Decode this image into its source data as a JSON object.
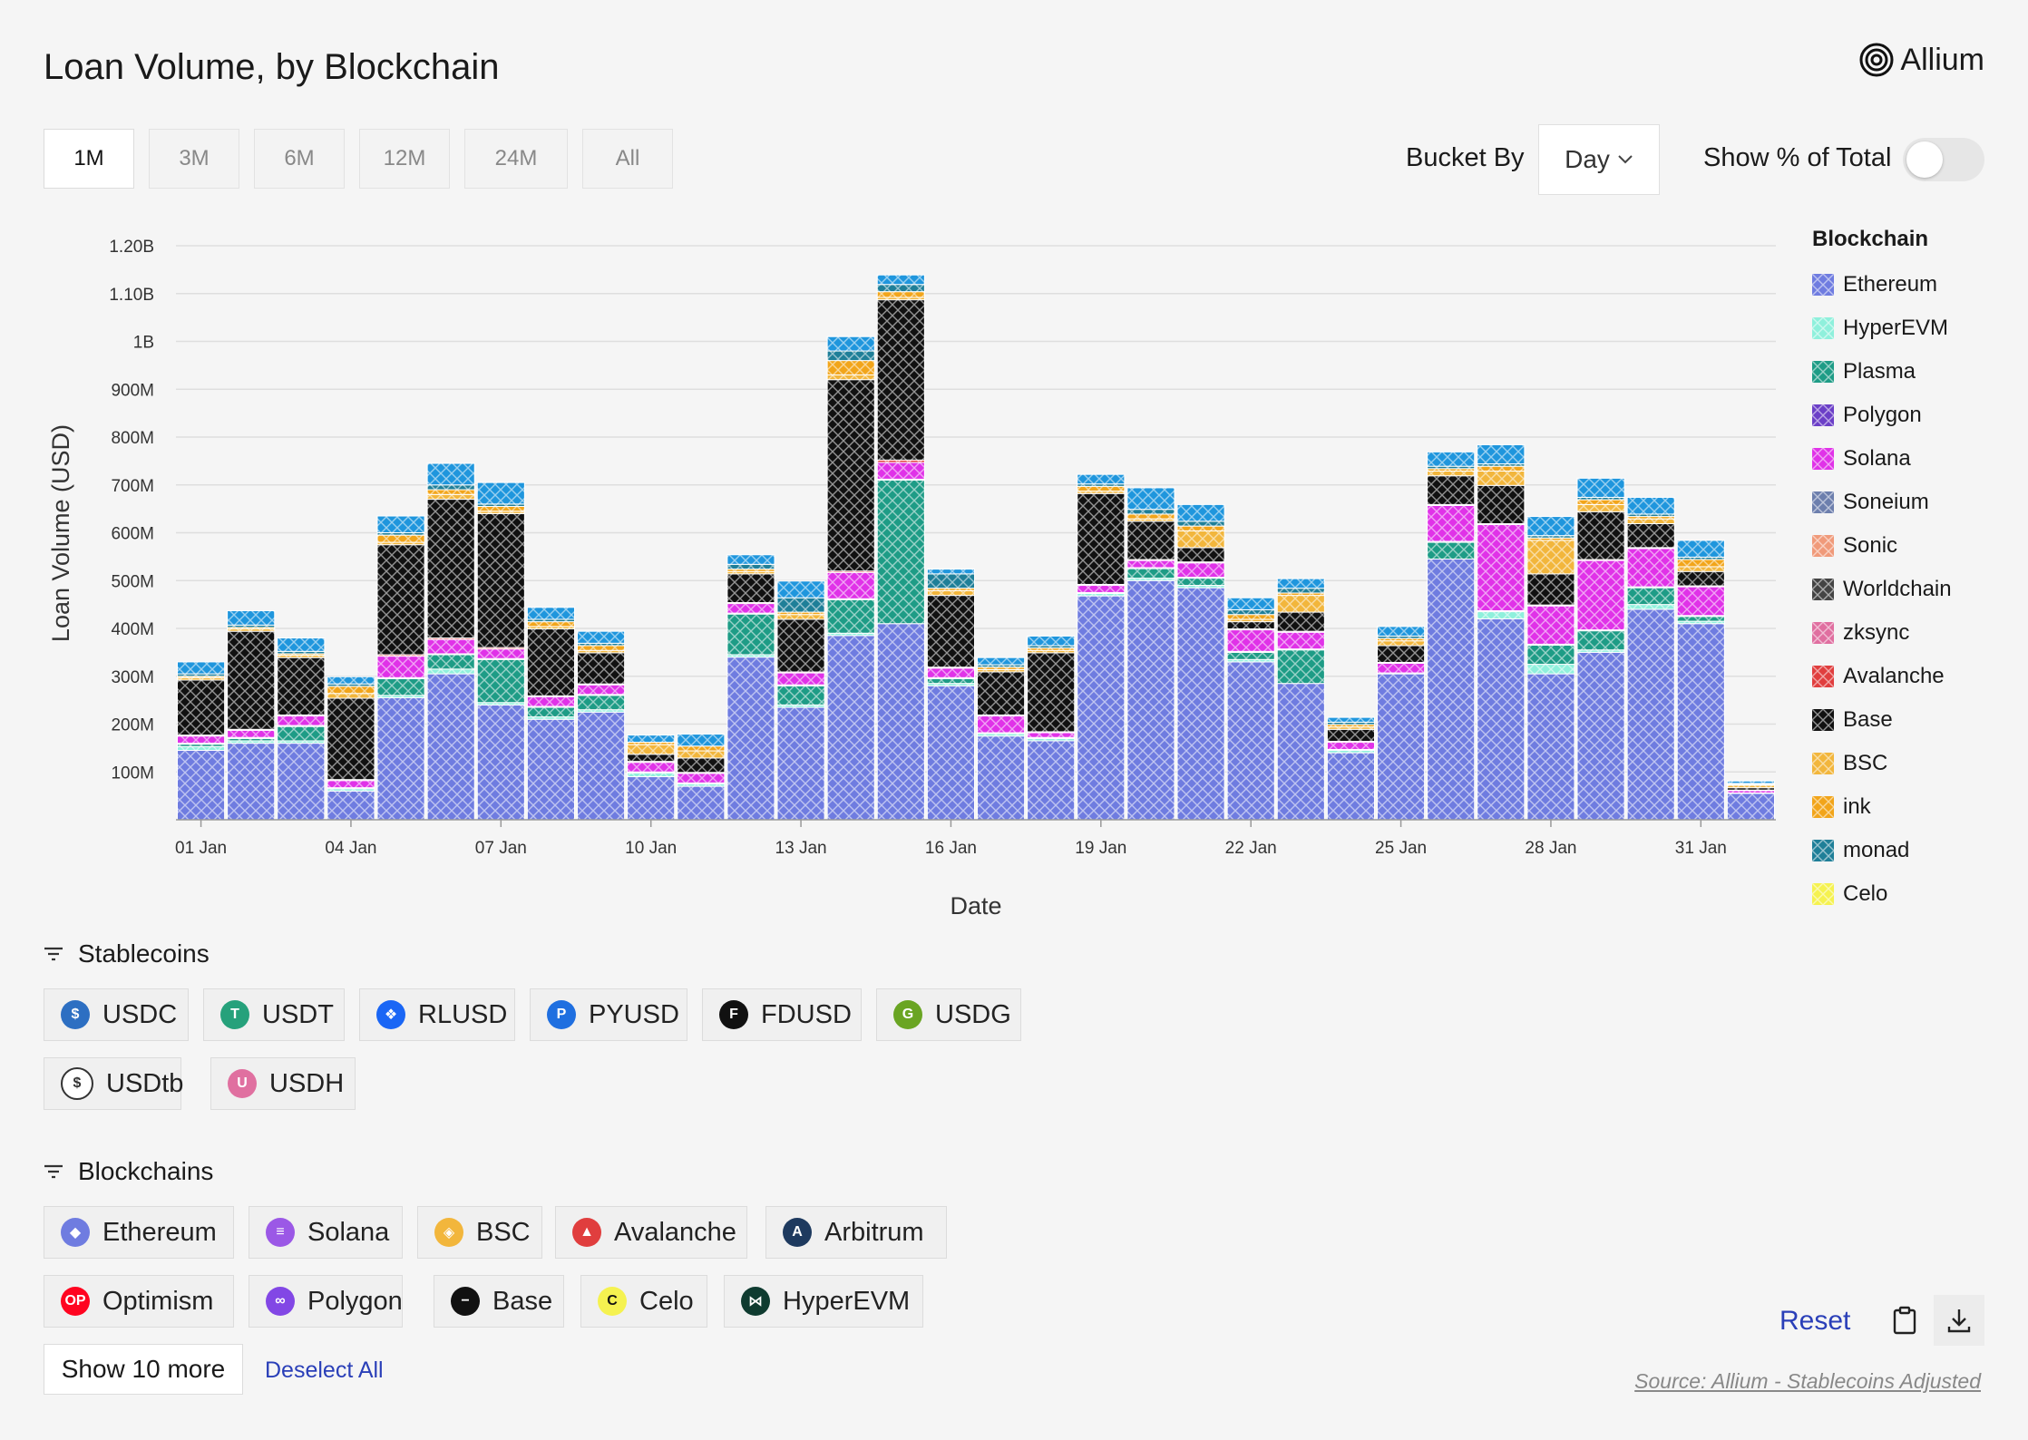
{
  "header": {
    "title": "Loan Volume, by Blockchain",
    "brand": "Allium"
  },
  "ranges": [
    {
      "label": "1M",
      "active": true
    },
    {
      "label": "3M",
      "active": false
    },
    {
      "label": "6M",
      "active": false
    },
    {
      "label": "12M",
      "active": false
    },
    {
      "label": "24M",
      "active": false
    },
    {
      "label": "All",
      "active": false
    }
  ],
  "controls": {
    "bucket_label": "Bucket By",
    "bucket_value": "Day",
    "pct_label": "Show % of Total",
    "pct_on": false
  },
  "chart_data": {
    "type": "bar",
    "stacked": true,
    "xlabel": "Date",
    "ylabel": "Loan Volume (USD)",
    "ylim": [
      0,
      1200000000
    ],
    "yticks": [
      {
        "value": 100000000,
        "label": "100M"
      },
      {
        "value": 200000000,
        "label": "200M"
      },
      {
        "value": 300000000,
        "label": "300M"
      },
      {
        "value": 400000000,
        "label": "400M"
      },
      {
        "value": 500000000,
        "label": "500M"
      },
      {
        "value": 600000000,
        "label": "600M"
      },
      {
        "value": 700000000,
        "label": "700M"
      },
      {
        "value": 800000000,
        "label": "800M"
      },
      {
        "value": 900000000,
        "label": "900M"
      },
      {
        "value": 1000000000,
        "label": "1B"
      },
      {
        "value": 1100000000,
        "label": "1.10B"
      },
      {
        "value": 1200000000,
        "label": "1.20B"
      }
    ],
    "categories": [
      "01 Jan",
      "02 Jan",
      "03 Jan",
      "04 Jan",
      "05 Jan",
      "06 Jan",
      "07 Jan",
      "08 Jan",
      "09 Jan",
      "10 Jan",
      "11 Jan",
      "12 Jan",
      "13 Jan",
      "14 Jan",
      "15 Jan",
      "16 Jan",
      "17 Jan",
      "18 Jan",
      "19 Jan",
      "20 Jan",
      "21 Jan",
      "22 Jan",
      "23 Jan",
      "24 Jan",
      "25 Jan",
      "26 Jan",
      "27 Jan",
      "28 Jan",
      "29 Jan",
      "30 Jan",
      "31 Jan",
      "01 Feb"
    ],
    "xtick_labels": [
      "01 Jan",
      "04 Jan",
      "07 Jan",
      "10 Jan",
      "13 Jan",
      "16 Jan",
      "19 Jan",
      "22 Jan",
      "25 Jan",
      "28 Jan",
      "31 Jan"
    ],
    "grid": true,
    "legend_position": "right",
    "legend_title": "Blockchain",
    "series": [
      {
        "name": "Ethereum",
        "color": "#6f7ce0",
        "values": [
          145,
          160,
          160,
          60,
          255,
          305,
          240,
          210,
          225,
          90,
          70,
          340,
          235,
          385,
          410,
          280,
          175,
          165,
          468,
          500,
          485,
          330,
          285,
          140,
          305,
          545,
          420,
          305,
          350,
          440,
          410,
          55
        ]
      },
      {
        "name": "HyperEVM",
        "color": "#8ff0dc",
        "values": [
          8,
          5,
          5,
          5,
          5,
          10,
          5,
          5,
          5,
          8,
          5,
          5,
          5,
          5,
          0,
          5,
          5,
          5,
          5,
          5,
          5,
          5,
          0,
          5,
          0,
          0,
          15,
          20,
          5,
          10,
          5,
          0
        ]
      },
      {
        "name": "Plasma",
        "color": "#1e9c86",
        "values": [
          5,
          5,
          30,
          0,
          35,
          30,
          90,
          20,
          30,
          0,
          0,
          85,
          40,
          70,
          300,
          10,
          0,
          0,
          0,
          20,
          15,
          15,
          70,
          0,
          0,
          35,
          0,
          40,
          40,
          35,
          10,
          0
        ]
      },
      {
        "name": "Polygon",
        "color": "#6b3fc7",
        "values": [
          2,
          2,
          2,
          2,
          2,
          2,
          2,
          2,
          2,
          2,
          2,
          2,
          2,
          2,
          2,
          2,
          2,
          2,
          2,
          2,
          2,
          2,
          2,
          2,
          2,
          2,
          2,
          2,
          2,
          2,
          2,
          1
        ]
      },
      {
        "name": "Solana",
        "color": "#e032e8",
        "values": [
          15,
          15,
          20,
          15,
          45,
          30,
          20,
          20,
          20,
          20,
          20,
          20,
          25,
          55,
          35,
          20,
          35,
          10,
          15,
          15,
          30,
          45,
          35,
          15,
          20,
          75,
          180,
          80,
          145,
          80,
          60,
          5
        ]
      },
      {
        "name": "Soneium",
        "color": "#6d7fad",
        "values": [
          0,
          0,
          0,
          0,
          0,
          0,
          0,
          0,
          0,
          0,
          0,
          0,
          0,
          0,
          0,
          0,
          0,
          0,
          0,
          0,
          0,
          0,
          0,
          0,
          0,
          0,
          0,
          0,
          0,
          0,
          0,
          0
        ]
      },
      {
        "name": "Sonic",
        "color": "#f09a7a",
        "values": [
          0,
          0,
          0,
          0,
          0,
          0,
          0,
          0,
          0,
          0,
          0,
          0,
          0,
          0,
          0,
          0,
          0,
          0,
          0,
          0,
          0,
          0,
          0,
          0,
          0,
          0,
          0,
          0,
          0,
          0,
          0,
          0
        ]
      },
      {
        "name": "Worldchain",
        "color": "#444444",
        "values": [
          0,
          0,
          0,
          0,
          0,
          0,
          0,
          0,
          0,
          0,
          0,
          0,
          0,
          0,
          0,
          0,
          0,
          0,
          0,
          0,
          0,
          0,
          0,
          0,
          0,
          0,
          0,
          0,
          0,
          0,
          0,
          0
        ]
      },
      {
        "name": "zksync",
        "color": "#e06fa0",
        "values": [
          0,
          0,
          0,
          0,
          0,
          0,
          0,
          0,
          0,
          0,
          0,
          0,
          0,
          0,
          0,
          0,
          0,
          0,
          0,
          0,
          0,
          0,
          0,
          0,
          0,
          0,
          0,
          0,
          0,
          0,
          0,
          0
        ]
      },
      {
        "name": "Avalanche",
        "color": "#e03e3e",
        "values": [
          2,
          2,
          2,
          2,
          3,
          3,
          3,
          2,
          2,
          2,
          2,
          2,
          2,
          3,
          5,
          2,
          2,
          2,
          2,
          2,
          2,
          2,
          2,
          2,
          2,
          2,
          2,
          2,
          2,
          2,
          2,
          1
        ]
      },
      {
        "name": "Base",
        "color": "#111111",
        "values": [
          115,
          205,
          120,
          170,
          230,
          290,
          280,
          140,
          65,
          15,
          30,
          60,
          110,
          400,
          335,
          150,
          90,
          165,
          190,
          80,
          30,
          15,
          40,
          25,
          35,
          60,
          80,
          65,
          100,
          50,
          30,
          5
        ]
      },
      {
        "name": "BSC",
        "color": "#f2b63c",
        "values": [
          5,
          5,
          5,
          10,
          5,
          10,
          5,
          5,
          5,
          20,
          15,
          5,
          10,
          10,
          5,
          10,
          5,
          5,
          5,
          5,
          35,
          5,
          35,
          5,
          10,
          10,
          30,
          70,
          15,
          10,
          10,
          5
        ]
      },
      {
        "name": "ink",
        "color": "#f2a51a",
        "values": [
          3,
          3,
          3,
          15,
          15,
          10,
          10,
          10,
          10,
          5,
          10,
          5,
          5,
          30,
          12,
          5,
          5,
          5,
          10,
          10,
          10,
          10,
          5,
          5,
          5,
          5,
          10,
          5,
          10,
          5,
          15,
          2
        ]
      },
      {
        "name": "monad",
        "color": "#1f7f98",
        "values": [
          5,
          5,
          5,
          5,
          5,
          10,
          5,
          5,
          5,
          0,
          0,
          10,
          30,
          20,
          15,
          30,
          5,
          5,
          5,
          10,
          10,
          10,
          10,
          5,
          5,
          5,
          5,
          5,
          5,
          5,
          5,
          2
        ]
      },
      {
        "name": "Celo",
        "color": "#f5f250",
        "values": [
          0,
          0,
          0,
          0,
          0,
          0,
          0,
          0,
          0,
          0,
          0,
          0,
          0,
          0,
          0,
          0,
          0,
          0,
          0,
          0,
          0,
          0,
          0,
          0,
          0,
          0,
          0,
          0,
          0,
          0,
          0,
          0
        ]
      },
      {
        "name": "",
        "color": "#1f96dd",
        "values": [
          25,
          30,
          28,
          15,
          35,
          45,
          45,
          25,
          25,
          15,
          25,
          20,
          35,
          30,
          20,
          10,
          15,
          20,
          20,
          45,
          35,
          25,
          20,
          10,
          20,
          30,
          40,
          40,
          40,
          35,
          35,
          5
        ]
      }
    ],
    "value_units": "millions USD"
  },
  "legend": [
    "Ethereum",
    "HyperEVM",
    "Plasma",
    "Polygon",
    "Solana",
    "Soneium",
    "Sonic",
    "Worldchain",
    "zksync",
    "Avalanche",
    "Base",
    "BSC",
    "ink",
    "monad",
    "Celo"
  ],
  "stablecoins": {
    "title": "Stablecoins",
    "items": [
      {
        "label": "USDC",
        "color": "#2d6fc2",
        "glyph": "$"
      },
      {
        "label": "USDT",
        "color": "#26a17b",
        "glyph": "T"
      },
      {
        "label": "RLUSD",
        "color": "#1a66f5",
        "glyph": "❖"
      },
      {
        "label": "PYUSD",
        "color": "#1f6fe0",
        "glyph": "P"
      },
      {
        "label": "FDUSD",
        "color": "#111111",
        "glyph": "F"
      },
      {
        "label": "USDG",
        "color": "#6aa523",
        "glyph": "G"
      },
      {
        "label": "USDtb",
        "color": "#ffffff",
        "glyph": "$"
      },
      {
        "label": "USDH",
        "color": "#e070a0",
        "glyph": "U"
      }
    ]
  },
  "blockchains": {
    "title": "Blockchains",
    "items": [
      {
        "label": "Ethereum",
        "color": "#6f7ce0",
        "glyph": "◆"
      },
      {
        "label": "Solana",
        "color": "#9b58e6",
        "glyph": "≡"
      },
      {
        "label": "BSC",
        "color": "#f2b63c",
        "glyph": "◈"
      },
      {
        "label": "Avalanche",
        "color": "#e03e3e",
        "glyph": "▲"
      },
      {
        "label": "Arbitrum",
        "color": "#1e3a5f",
        "glyph": "A"
      },
      {
        "label": "Optimism",
        "color": "#ff0420",
        "glyph": "OP"
      },
      {
        "label": "Polygon",
        "color": "#8247e5",
        "glyph": "∞"
      },
      {
        "label": "Base",
        "color": "#111111",
        "glyph": "−"
      },
      {
        "label": "Celo",
        "color": "#f5f250",
        "glyph": "C"
      },
      {
        "label": "HyperEVM",
        "color": "#0f3b30",
        "glyph": "⋈"
      }
    ]
  },
  "footer": {
    "show_more": "Show 10 more",
    "deselect": "Deselect All",
    "reset": "Reset",
    "source": "Source: Allium - Stablecoins Adjusted"
  }
}
